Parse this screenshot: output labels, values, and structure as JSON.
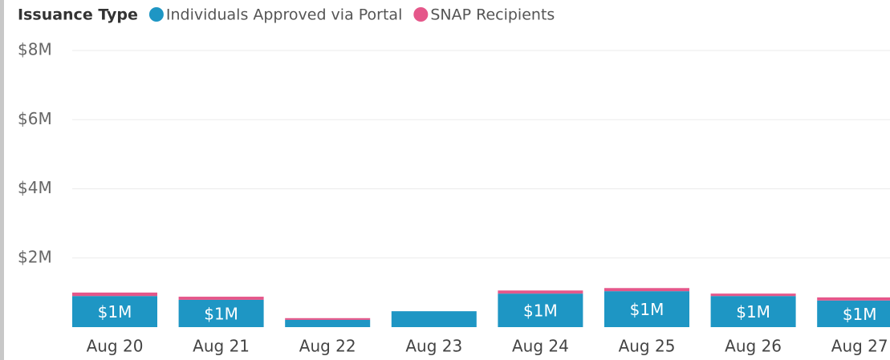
{
  "chart_data": {
    "type": "stacked_bar",
    "legend_title": "Issuance Type",
    "categories": [
      "Aug 20",
      "Aug 21",
      "Aug 22",
      "Aug 23",
      "Aug 24",
      "Aug 25",
      "Aug 26",
      "Aug 27"
    ],
    "series": [
      {
        "name": "Individuals Approved via Portal",
        "color": "#1e96c4",
        "values": [
          900000,
          790000,
          210000,
          460000,
          970000,
          1040000,
          900000,
          770000
        ],
        "value_labels": [
          "$1M",
          "$1M",
          null,
          null,
          "$1M",
          "$1M",
          "$1M",
          "$1M"
        ]
      },
      {
        "name": "SNAP Recipients",
        "color": "#e5578a",
        "values": [
          100000,
          90000,
          50000,
          0,
          90000,
          90000,
          70000,
          90000
        ]
      }
    ],
    "ylim": [
      0,
      8000000
    ],
    "yticks": [
      {
        "value": 2000000,
        "label": "$2M"
      },
      {
        "value": 4000000,
        "label": "$4M"
      },
      {
        "value": 6000000,
        "label": "$6M"
      },
      {
        "value": 8000000,
        "label": "$8M"
      }
    ],
    "grid": true,
    "legend": "top-left"
  }
}
